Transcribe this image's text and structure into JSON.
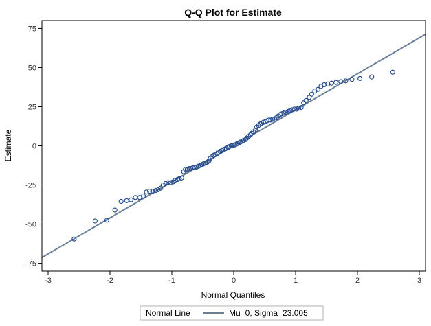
{
  "chart_data": {
    "type": "scatter",
    "title": "Q-Q Plot for Estimate",
    "xlabel": "Normal Quantiles",
    "ylabel": "Estimate",
    "xlim": [
      -3.1,
      3.1
    ],
    "ylim": [
      -80,
      80
    ],
    "x_ticks": [
      -3,
      -2,
      -1,
      0,
      1,
      2,
      3
    ],
    "y_ticks": [
      -75,
      -50,
      -25,
      0,
      25,
      50,
      75
    ],
    "grid": false,
    "colors": {
      "points": "#2a4f8f",
      "line": "#6b7f99",
      "frame": "#000000"
    },
    "reference_line": {
      "mu": 0,
      "sigma": 23.005
    },
    "legend": {
      "placement": "bottom",
      "title": "Normal Line",
      "entry": "Mu=0, Sigma=23.005"
    },
    "points": [
      [
        -2.58,
        -59.5
      ],
      [
        -2.24,
        -48.0
      ],
      [
        -2.05,
        -47.5
      ],
      [
        -1.92,
        -41.0
      ],
      [
        -1.82,
        -35.5
      ],
      [
        -1.73,
        -35.0
      ],
      [
        -1.66,
        -34.5
      ],
      [
        -1.59,
        -33.0
      ],
      [
        -1.52,
        -33.0
      ],
      [
        -1.46,
        -32.0
      ],
      [
        -1.41,
        -29.5
      ],
      [
        -1.36,
        -29.0
      ],
      [
        -1.31,
        -29.0
      ],
      [
        -1.26,
        -28.5
      ],
      [
        -1.22,
        -28.0
      ],
      [
        -1.18,
        -27.0
      ],
      [
        -1.14,
        -25.0
      ],
      [
        -1.1,
        -24.0
      ],
      [
        -1.06,
        -23.5
      ],
      [
        -1.02,
        -23.5
      ],
      [
        -0.98,
        -23.0
      ],
      [
        -0.95,
        -22.0
      ],
      [
        -0.91,
        -21.5
      ],
      [
        -0.88,
        -21.0
      ],
      [
        -0.84,
        -20.5
      ],
      [
        -0.81,
        -16.5
      ],
      [
        -0.78,
        -15.0
      ],
      [
        -0.75,
        -15.0
      ],
      [
        -0.72,
        -14.5
      ],
      [
        -0.69,
        -14.5
      ],
      [
        -0.66,
        -14.0
      ],
      [
        -0.63,
        -14.0
      ],
      [
        -0.6,
        -13.5
      ],
      [
        -0.57,
        -13.0
      ],
      [
        -0.54,
        -12.5
      ],
      [
        -0.51,
        -12.0
      ],
      [
        -0.49,
        -11.5
      ],
      [
        -0.46,
        -11.0
      ],
      [
        -0.43,
        -10.5
      ],
      [
        -0.4,
        -9.5
      ],
      [
        -0.38,
        -8.0
      ],
      [
        -0.35,
        -7.0
      ],
      [
        -0.32,
        -6.0
      ],
      [
        -0.3,
        -5.5
      ],
      [
        -0.27,
        -5.0
      ],
      [
        -0.25,
        -4.0
      ],
      [
        -0.22,
        -3.5
      ],
      [
        -0.19,
        -3.0
      ],
      [
        -0.17,
        -2.5
      ],
      [
        -0.14,
        -2.0
      ],
      [
        -0.12,
        -1.5
      ],
      [
        -0.09,
        -1.0
      ],
      [
        -0.07,
        -0.5
      ],
      [
        -0.04,
        0.0
      ],
      [
        -0.02,
        0.0
      ],
      [
        0.01,
        0.5
      ],
      [
        0.04,
        1.0
      ],
      [
        0.06,
        1.5
      ],
      [
        0.09,
        2.0
      ],
      [
        0.11,
        2.5
      ],
      [
        0.14,
        3.0
      ],
      [
        0.16,
        3.5
      ],
      [
        0.19,
        4.0
      ],
      [
        0.21,
        5.0
      ],
      [
        0.24,
        6.0
      ],
      [
        0.27,
        7.0
      ],
      [
        0.29,
        8.0
      ],
      [
        0.32,
        9.0
      ],
      [
        0.35,
        10.0
      ],
      [
        0.37,
        12.0
      ],
      [
        0.4,
        13.0
      ],
      [
        0.43,
        14.0
      ],
      [
        0.45,
        14.5
      ],
      [
        0.48,
        15.0
      ],
      [
        0.51,
        15.5
      ],
      [
        0.54,
        16.0
      ],
      [
        0.57,
        16.5
      ],
      [
        0.6,
        16.5
      ],
      [
        0.63,
        17.0
      ],
      [
        0.66,
        17.0
      ],
      [
        0.69,
        18.0
      ],
      [
        0.72,
        19.0
      ],
      [
        0.75,
        20.0
      ],
      [
        0.78,
        20.5
      ],
      [
        0.81,
        21.0
      ],
      [
        0.84,
        21.5
      ],
      [
        0.88,
        22.0
      ],
      [
        0.91,
        22.5
      ],
      [
        0.94,
        23.0
      ],
      [
        0.98,
        23.5
      ],
      [
        1.02,
        23.5
      ],
      [
        1.05,
        24.0
      ],
      [
        1.09,
        24.5
      ],
      [
        1.13,
        27.5
      ],
      [
        1.17,
        29.0
      ],
      [
        1.22,
        31.0
      ],
      [
        1.26,
        33.0
      ],
      [
        1.31,
        35.0
      ],
      [
        1.36,
        36.0
      ],
      [
        1.41,
        38.0
      ],
      [
        1.46,
        39.0
      ],
      [
        1.52,
        39.5
      ],
      [
        1.58,
        40.0
      ],
      [
        1.65,
        40.5
      ],
      [
        1.73,
        41.0
      ],
      [
        1.81,
        41.5
      ],
      [
        1.91,
        42.5
      ],
      [
        2.04,
        43.0
      ],
      [
        2.23,
        44.0
      ],
      [
        2.57,
        47.0
      ]
    ]
  }
}
